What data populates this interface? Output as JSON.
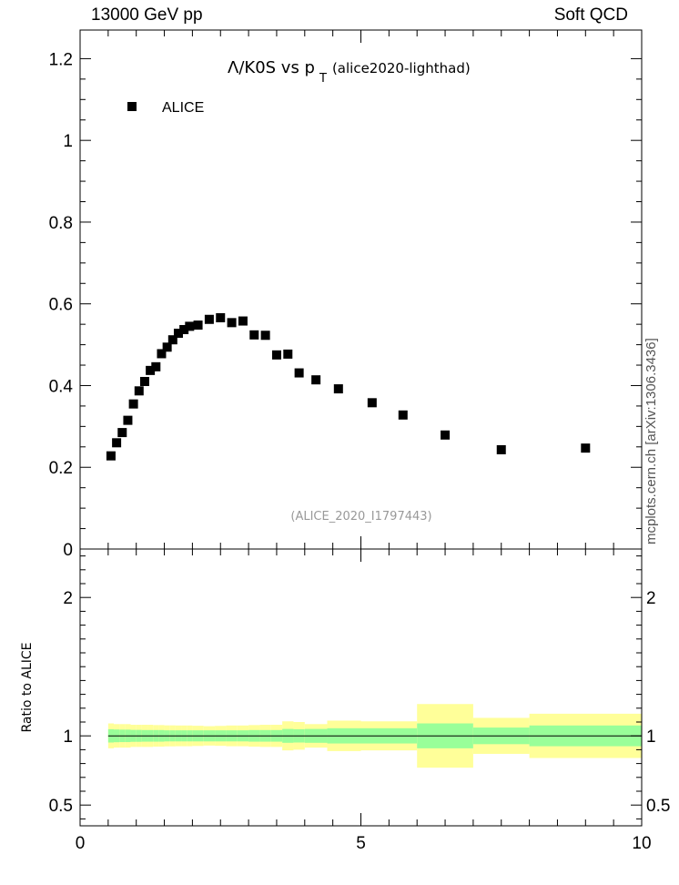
{
  "header": {
    "energy": "13000 GeV pp",
    "category": "Soft QCD"
  },
  "side_label": "mcplots.cern.ch [arXiv:1306.3436]",
  "colors": {
    "data": "#000000",
    "band_inner": "#99ff99",
    "band_outer": "#ffff99",
    "ref_line": "#000000"
  },
  "chart_data": {
    "type": "scatter",
    "title": {
      "lambda": "Λ",
      "main": "/K0S vs p",
      "sub": "T",
      "tag": "(alice2020-lighthad)"
    },
    "analysis_id": "(ALICE_2020_I1797443)",
    "legend": {
      "entries": [
        "ALICE"
      ],
      "position": "top-left"
    },
    "xlim": [
      0,
      10
    ],
    "x_ticks": [
      "0",
      "5",
      "10"
    ],
    "main_panel": {
      "ylim": [
        0,
        1.27
      ],
      "y_ticks": [
        "0",
        "0.2",
        "0.4",
        "0.6",
        "0.8",
        "1",
        "1.2"
      ],
      "series": [
        {
          "name": "ALICE",
          "x": [
            0.55,
            0.65,
            0.75,
            0.85,
            0.95,
            1.05,
            1.15,
            1.25,
            1.35,
            1.45,
            1.55,
            1.65,
            1.75,
            1.85,
            1.95,
            2.1,
            2.3,
            2.5,
            2.7,
            2.9,
            3.1,
            3.3,
            3.5,
            3.7,
            3.9,
            4.2,
            4.6,
            5.2,
            5.75,
            6.5,
            7.5,
            9.0
          ],
          "y": [
            0.228,
            0.26,
            0.285,
            0.315,
            0.355,
            0.387,
            0.41,
            0.437,
            0.446,
            0.478,
            0.494,
            0.512,
            0.528,
            0.537,
            0.545,
            0.548,
            0.562,
            0.566,
            0.554,
            0.558,
            0.524,
            0.523,
            0.475,
            0.477,
            0.431,
            0.414,
            0.392,
            0.358,
            0.328,
            0.279,
            0.243,
            0.247
          ]
        }
      ]
    },
    "ratio_panel": {
      "ylabel": "Ratio to ALICE",
      "ylim": [
        0.35,
        2.35
      ],
      "y_ticks": [
        "0.5",
        "1",
        "2"
      ],
      "reference": 1,
      "bands": [
        {
          "x0": 0.5,
          "x1": 0.6,
          "inner": 0.048,
          "outer": 0.09
        },
        {
          "x0": 0.6,
          "x1": 0.7,
          "inner": 0.046,
          "outer": 0.085
        },
        {
          "x0": 0.7,
          "x1": 0.8,
          "inner": 0.045,
          "outer": 0.085
        },
        {
          "x0": 0.8,
          "x1": 0.9,
          "inner": 0.045,
          "outer": 0.085
        },
        {
          "x0": 0.9,
          "x1": 1.0,
          "inner": 0.043,
          "outer": 0.08
        },
        {
          "x0": 1.0,
          "x1": 1.1,
          "inner": 0.043,
          "outer": 0.08
        },
        {
          "x0": 1.1,
          "x1": 1.2,
          "inner": 0.042,
          "outer": 0.08
        },
        {
          "x0": 1.2,
          "x1": 1.3,
          "inner": 0.042,
          "outer": 0.08
        },
        {
          "x0": 1.3,
          "x1": 1.4,
          "inner": 0.042,
          "outer": 0.078
        },
        {
          "x0": 1.4,
          "x1": 1.5,
          "inner": 0.042,
          "outer": 0.078
        },
        {
          "x0": 1.5,
          "x1": 1.6,
          "inner": 0.04,
          "outer": 0.076
        },
        {
          "x0": 1.6,
          "x1": 1.7,
          "inner": 0.04,
          "outer": 0.076
        },
        {
          "x0": 1.7,
          "x1": 1.8,
          "inner": 0.04,
          "outer": 0.075
        },
        {
          "x0": 1.8,
          "x1": 1.9,
          "inner": 0.04,
          "outer": 0.075
        },
        {
          "x0": 1.9,
          "x1": 2.0,
          "inner": 0.04,
          "outer": 0.075
        },
        {
          "x0": 2.0,
          "x1": 2.2,
          "inner": 0.04,
          "outer": 0.073
        },
        {
          "x0": 2.2,
          "x1": 2.4,
          "inner": 0.04,
          "outer": 0.07
        },
        {
          "x0": 2.4,
          "x1": 2.6,
          "inner": 0.04,
          "outer": 0.072
        },
        {
          "x0": 2.6,
          "x1": 2.8,
          "inner": 0.04,
          "outer": 0.075
        },
        {
          "x0": 2.8,
          "x1": 3.0,
          "inner": 0.04,
          "outer": 0.075
        },
        {
          "x0": 3.0,
          "x1": 3.2,
          "inner": 0.042,
          "outer": 0.078
        },
        {
          "x0": 3.2,
          "x1": 3.4,
          "inner": 0.042,
          "outer": 0.08
        },
        {
          "x0": 3.4,
          "x1": 3.6,
          "inner": 0.042,
          "outer": 0.08
        },
        {
          "x0": 3.6,
          "x1": 3.8,
          "inner": 0.05,
          "outer": 0.105
        },
        {
          "x0": 3.8,
          "x1": 4.0,
          "inner": 0.048,
          "outer": 0.1
        },
        {
          "x0": 4.0,
          "x1": 4.4,
          "inner": 0.05,
          "outer": 0.085
        },
        {
          "x0": 4.4,
          "x1": 5.0,
          "inner": 0.055,
          "outer": 0.11
        },
        {
          "x0": 5.0,
          "x1": 6.0,
          "inner": 0.055,
          "outer": 0.105
        },
        {
          "x0": 6.0,
          "x1": 7.0,
          "inner": 0.09,
          "outer": 0.23
        },
        {
          "x0": 7.0,
          "x1": 8.0,
          "inner": 0.06,
          "outer": 0.13
        },
        {
          "x0": 8.0,
          "x1": 10.0,
          "inner": 0.075,
          "outer": 0.16
        }
      ]
    }
  }
}
